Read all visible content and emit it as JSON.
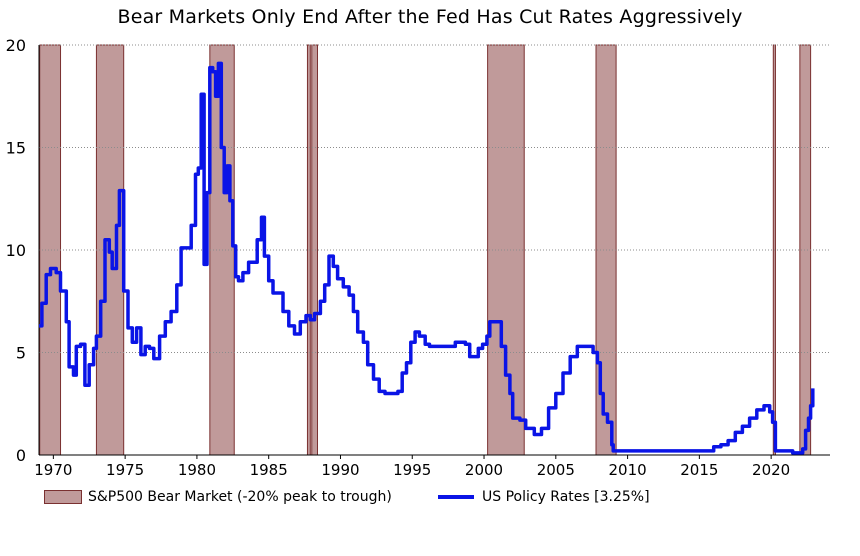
{
  "chart_data": {
    "type": "line",
    "title": "Bear Markets Only End After the Fed Has Cut Rates Aggressively",
    "xlabel": "",
    "ylabel": "",
    "xlim": [
      1969.0,
      2024.1
    ],
    "ylim": [
      0,
      20
    ],
    "yticks": [
      0,
      5,
      10,
      15,
      20
    ],
    "xticks": [
      1970,
      1975,
      1980,
      1985,
      1990,
      1995,
      2000,
      2005,
      2010,
      2015,
      2020
    ],
    "grid": "horizontal dotted",
    "legend_position": "bottom",
    "colors": {
      "bear": "#c09a9a",
      "bear_edge": "#7a3030",
      "line": "#0a14e6"
    },
    "bear_markets": {
      "name": "S&P500 Bear Market (-20% peak to trough)",
      "periods": [
        [
          1969.05,
          1970.5
        ],
        [
          1973.0,
          1974.9
        ],
        [
          1980.9,
          1982.6
        ],
        [
          1987.7,
          1987.9
        ],
        [
          1988.0,
          1988.4
        ],
        [
          2000.25,
          2002.8
        ],
        [
          2007.8,
          2009.2
        ],
        [
          2020.15,
          2020.3
        ],
        [
          2022.0,
          2022.75
        ]
      ]
    },
    "series": [
      {
        "name": "US Policy Rates [3.25%]",
        "x": [
          1969.0,
          1969.2,
          1969.5,
          1969.8,
          1970.2,
          1970.5,
          1970.9,
          1971.1,
          1971.4,
          1971.6,
          1971.9,
          1972.2,
          1972.5,
          1972.8,
          1973.0,
          1973.3,
          1973.6,
          1973.9,
          1974.1,
          1974.4,
          1974.6,
          1974.9,
          1975.2,
          1975.5,
          1975.8,
          1976.1,
          1976.4,
          1976.7,
          1977.0,
          1977.4,
          1977.8,
          1978.2,
          1978.6,
          1978.9,
          1979.2,
          1979.6,
          1979.9,
          1980.1,
          1980.3,
          1980.5,
          1980.7,
          1980.9,
          1981.1,
          1981.3,
          1981.5,
          1981.7,
          1981.9,
          1982.1,
          1982.3,
          1982.5,
          1982.7,
          1982.9,
          1983.2,
          1983.6,
          1983.9,
          1984.2,
          1984.5,
          1984.7,
          1985.0,
          1985.3,
          1985.6,
          1986.0,
          1986.4,
          1986.8,
          1987.2,
          1987.6,
          1987.9,
          1988.2,
          1988.6,
          1988.9,
          1989.2,
          1989.5,
          1989.8,
          1990.2,
          1990.6,
          1990.9,
          1991.2,
          1991.6,
          1991.9,
          1992.3,
          1992.7,
          1993.1,
          1993.6,
          1994.0,
          1994.3,
          1994.6,
          1994.9,
          1995.2,
          1995.5,
          1995.9,
          1996.2,
          1997.0,
          1998.0,
          1998.7,
          1999.0,
          1999.3,
          1999.6,
          1999.9,
          2000.2,
          2000.4,
          2001.0,
          2001.2,
          2001.5,
          2001.8,
          2002.0,
          2002.5,
          2002.9,
          2003.5,
          2004.0,
          2004.5,
          2005.0,
          2005.5,
          2006.0,
          2006.5,
          2007.0,
          2007.6,
          2007.9,
          2008.1,
          2008.3,
          2008.6,
          2008.9,
          2009.0,
          2011.0,
          2015.8,
          2016.0,
          2016.5,
          2017.0,
          2017.5,
          2018.0,
          2018.5,
          2019.0,
          2019.5,
          2019.7,
          2019.9,
          2020.1,
          2020.3,
          2021.5,
          2022.0,
          2022.2,
          2022.4,
          2022.6,
          2022.75,
          2022.9
        ],
        "values": [
          6.3,
          7.4,
          8.8,
          9.1,
          8.9,
          8.0,
          6.5,
          4.3,
          3.9,
          5.3,
          5.4,
          3.4,
          4.4,
          5.2,
          5.8,
          7.5,
          10.5,
          9.9,
          9.1,
          11.2,
          12.9,
          8.0,
          6.2,
          5.5,
          6.2,
          4.9,
          5.3,
          5.2,
          4.7,
          5.8,
          6.5,
          7.0,
          8.3,
          10.1,
          10.1,
          11.2,
          13.7,
          14.0,
          17.6,
          9.3,
          12.8,
          18.9,
          18.7,
          17.5,
          19.1,
          15.0,
          12.8,
          14.1,
          12.4,
          10.2,
          8.7,
          8.5,
          8.9,
          9.4,
          9.4,
          10.5,
          11.6,
          9.7,
          8.5,
          7.9,
          7.9,
          7.0,
          6.3,
          5.9,
          6.5,
          6.8,
          6.6,
          6.9,
          7.5,
          8.3,
          9.7,
          9.2,
          8.6,
          8.2,
          7.8,
          7.0,
          6.0,
          5.5,
          4.4,
          3.7,
          3.1,
          3.0,
          3.0,
          3.1,
          4.0,
          4.5,
          5.5,
          6.0,
          5.8,
          5.4,
          5.3,
          5.3,
          5.5,
          5.4,
          4.8,
          4.8,
          5.2,
          5.4,
          5.8,
          6.5,
          6.5,
          5.3,
          3.9,
          3.0,
          1.8,
          1.7,
          1.3,
          1.0,
          1.3,
          2.3,
          3.0,
          4.0,
          4.8,
          5.3,
          5.3,
          5.0,
          4.5,
          3.0,
          2.0,
          1.6,
          0.5,
          0.2,
          0.2,
          0.2,
          0.4,
          0.5,
          0.7,
          1.1,
          1.4,
          1.8,
          2.2,
          2.4,
          2.4,
          2.1,
          1.6,
          0.2,
          0.1,
          0.1,
          0.3,
          1.2,
          1.8,
          2.4,
          3.25
        ]
      }
    ]
  }
}
